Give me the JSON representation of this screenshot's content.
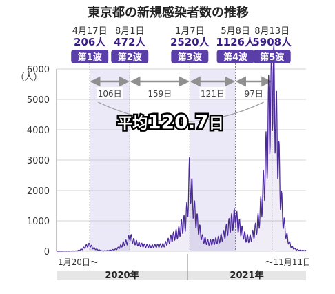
{
  "chart_data": {
    "type": "area",
    "title": "東京都の新規感染者数の推移",
    "y_unit": "（人）",
    "ylim": [
      0,
      6000
    ],
    "yticks": [
      0,
      1000,
      2000,
      3000,
      4000,
      5000,
      6000
    ],
    "xrange": [
      "2020-01-20",
      "2021-11-11"
    ],
    "x_start_label": "1月20日〜",
    "x_end_label": "〜11月11日",
    "years": [
      "2020年",
      "2021年"
    ],
    "year_boundary": "2021-01-01",
    "average": {
      "prefix": "平均",
      "value": "120.7",
      "suffix": "日"
    },
    "peaks": [
      {
        "date": "2020-04-17",
        "date_label": "4月17日",
        "value_label": "206人",
        "wave": "第1波",
        "value": 206
      },
      {
        "date": "2020-08-01",
        "date_label": "8月1日",
        "value_label": "472人",
        "wave": "第2波",
        "value": 472
      },
      {
        "date": "2021-01-07",
        "date_label": "1月7日",
        "value_label": "2520人",
        "wave": "第3波",
        "value": 2520
      },
      {
        "date": "2021-05-08",
        "date_label": "5月8日",
        "value_label": "1126人",
        "wave": "第4波",
        "value": 1126
      },
      {
        "date": "2021-08-13",
        "date_label": "8月13日",
        "value_label": "5908人",
        "wave": "第5波",
        "value": 5908
      }
    ],
    "intervals": [
      "106日",
      "159日",
      "121日",
      "97日"
    ],
    "series": [
      {
        "values": [
          [
            "2020-01-20",
            0
          ],
          [
            "2020-03-15",
            10
          ],
          [
            "2020-03-28",
            70
          ],
          [
            "2020-04-05",
            140
          ],
          [
            "2020-04-10",
            190
          ],
          [
            "2020-04-17",
            206
          ],
          [
            "2020-04-25",
            110
          ],
          [
            "2020-05-05",
            60
          ],
          [
            "2020-05-20",
            10
          ],
          [
            "2020-06-05",
            20
          ],
          [
            "2020-06-25",
            60
          ],
          [
            "2020-07-05",
            130
          ],
          [
            "2020-07-15",
            240
          ],
          [
            "2020-07-25",
            300
          ],
          [
            "2020-08-01",
            472
          ],
          [
            "2020-08-12",
            320
          ],
          [
            "2020-08-25",
            230
          ],
          [
            "2020-09-10",
            180
          ],
          [
            "2020-09-28",
            160
          ],
          [
            "2020-10-15",
            180
          ],
          [
            "2020-10-31",
            200
          ],
          [
            "2020-11-14",
            360
          ],
          [
            "2020-11-28",
            520
          ],
          [
            "2020-12-08",
            600
          ],
          [
            "2020-12-17",
            820
          ],
          [
            "2020-12-26",
            950
          ],
          [
            "2020-12-31",
            1300
          ],
          [
            "2021-01-07",
            2520
          ],
          [
            "2021-01-12",
            1900
          ],
          [
            "2021-01-20",
            1250
          ],
          [
            "2021-01-30",
            800
          ],
          [
            "2021-02-10",
            400
          ],
          [
            "2021-02-25",
            280
          ],
          [
            "2021-03-10",
            300
          ],
          [
            "2021-03-25",
            380
          ],
          [
            "2021-04-05",
            480
          ],
          [
            "2021-04-15",
            700
          ],
          [
            "2021-04-25",
            900
          ],
          [
            "2021-05-01",
            1000
          ],
          [
            "2021-05-08",
            1126
          ],
          [
            "2021-05-15",
            900
          ],
          [
            "2021-05-25",
            650
          ],
          [
            "2021-06-05",
            430
          ],
          [
            "2021-06-15",
            400
          ],
          [
            "2021-06-25",
            560
          ],
          [
            "2021-07-05",
            850
          ],
          [
            "2021-07-12",
            1200
          ],
          [
            "2021-07-20",
            1900
          ],
          [
            "2021-07-26",
            2700
          ],
          [
            "2021-08-01",
            3600
          ],
          [
            "2021-08-05",
            4700
          ],
          [
            "2021-08-10",
            4600
          ],
          [
            "2021-08-13",
            5908
          ],
          [
            "2021-08-18",
            5200
          ],
          [
            "2021-08-24",
            4200
          ],
          [
            "2021-08-31",
            2900
          ],
          [
            "2021-09-05",
            1800
          ],
          [
            "2021-09-12",
            1000
          ],
          [
            "2021-09-20",
            500
          ],
          [
            "2021-09-28",
            250
          ],
          [
            "2021-10-06",
            120
          ],
          [
            "2021-10-15",
            60
          ],
          [
            "2021-10-25",
            30
          ],
          [
            "2021-11-11",
            20
          ]
        ]
      }
    ],
    "colors": {
      "line": "#4b2a9c",
      "fill": "#3a1e86",
      "shade": "#ebe8f7",
      "badge": "#5a3fa8",
      "grid": "#c4c4c4",
      "arrow": "#909090"
    }
  }
}
